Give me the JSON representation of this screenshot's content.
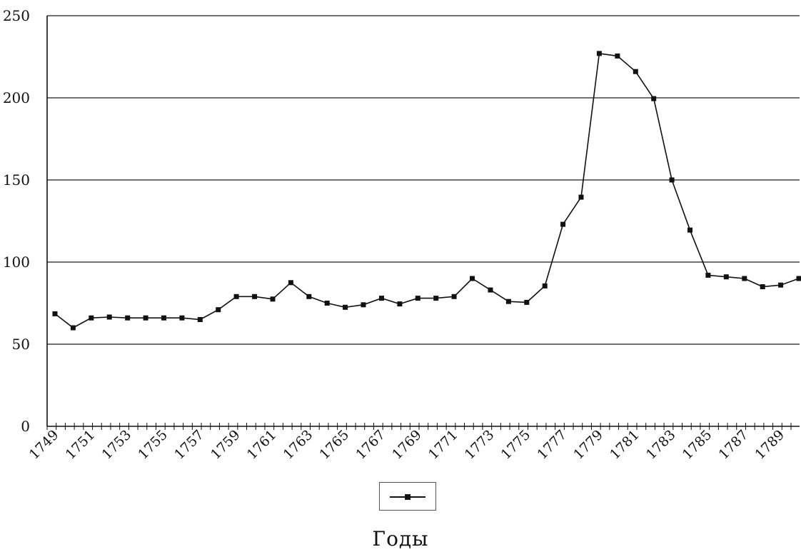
{
  "chart_data": {
    "type": "line",
    "title": "",
    "xlabel": "Годы",
    "ylabel": "",
    "ylim": [
      0,
      250
    ],
    "yticks": [
      0,
      50,
      100,
      150,
      200,
      250
    ],
    "grid": "horizontal",
    "legend": "bottom-center",
    "x": [
      1749,
      1750,
      1751,
      1752,
      1753,
      1754,
      1755,
      1756,
      1757,
      1758,
      1759,
      1760,
      1761,
      1762,
      1763,
      1764,
      1765,
      1766,
      1767,
      1768,
      1769,
      1770,
      1771,
      1772,
      1773,
      1774,
      1775,
      1776,
      1777,
      1778,
      1779,
      1780,
      1781,
      1782,
      1783,
      1784,
      1785,
      1786,
      1787,
      1788,
      1789,
      1790
    ],
    "x_tick_labels": [
      "1749",
      "1751",
      "1753",
      "1755",
      "1757",
      "1759",
      "1761",
      "1763",
      "1765",
      "1767",
      "1769",
      "1771",
      "1773",
      "1775",
      "1777",
      "1779",
      "1781",
      "1783",
      "1785",
      "1787",
      "1789"
    ],
    "series": [
      {
        "values": [
          68.5,
          60,
          66,
          66.5,
          66,
          66,
          66,
          66,
          65,
          71,
          79,
          79,
          77.5,
          87.5,
          79,
          75,
          72.5,
          74,
          78,
          74.5,
          78,
          78,
          79,
          90,
          83,
          76,
          75.5,
          85.5,
          123,
          139.5,
          227,
          225.5,
          216,
          199.5,
          150,
          119.5,
          92,
          91,
          90,
          85,
          86,
          90
        ]
      }
    ],
    "colors": {
      "line": "#111111",
      "grid": "#444444"
    }
  }
}
